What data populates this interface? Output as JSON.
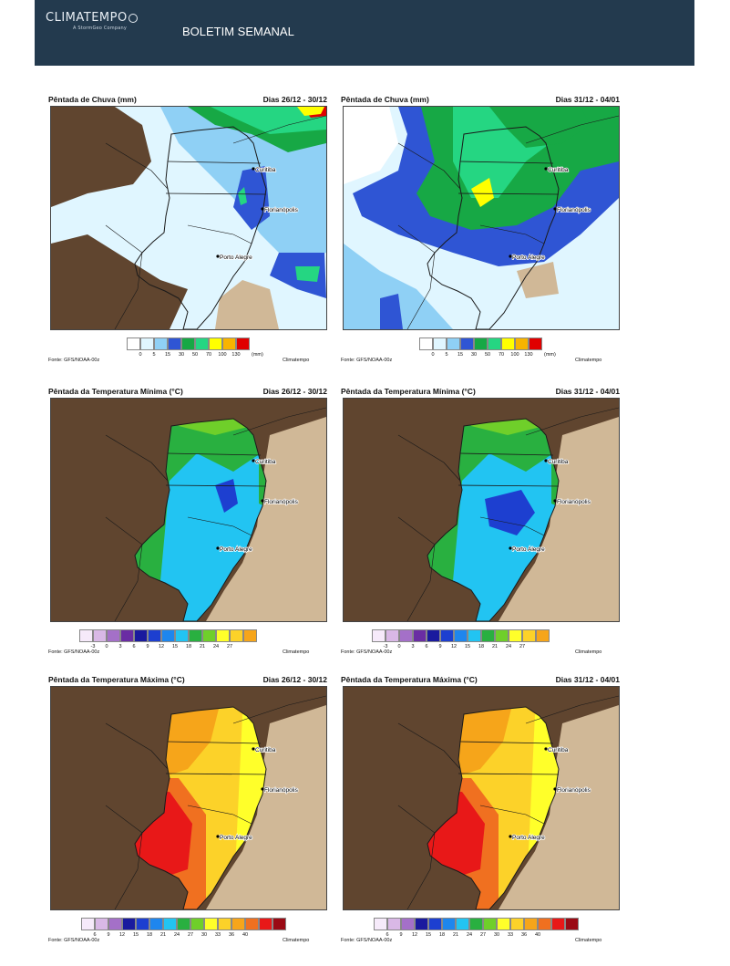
{
  "header": {
    "logo_text": "CLIMATEMPO",
    "logo_sub": "A StormGeo Company",
    "title": "BOLETIM SEMANAL",
    "bg_color": "#233a4e"
  },
  "rows": [
    {
      "kind": "rain",
      "panels": [
        {
          "title": "Pêntada de Chuva (mm)",
          "period": "Dias 26/12 - 30/12"
        },
        {
          "title": "Pêntada de Chuva (mm)",
          "period": "Dias 31/12 - 04/01"
        }
      ],
      "legend_colors": [
        "#ffffff",
        "#e0f6ff",
        "#8fd0f5",
        "#2f55d4",
        "#17a845",
        "#25d682",
        "#ffff00",
        "#f8b400",
        "#e00000"
      ],
      "legend_ticks": [
        "0",
        "5",
        "15",
        "30",
        "50",
        "70",
        "100",
        "130"
      ],
      "legend_unit": "(mm)"
    },
    {
      "kind": "tmin",
      "panels": [
        {
          "title": "Pêntada da Temperatura Mínima (°C)",
          "period": "Dias 26/12 - 30/12"
        },
        {
          "title": "Pêntada da Temperatura Mínima (°C)",
          "period": "Dias 31/12 - 04/01"
        }
      ],
      "legend_colors": [
        "#f6eafa",
        "#d9b8e6",
        "#a470c8",
        "#6a2da3",
        "#1a1a9e",
        "#1d3fd0",
        "#1e86ee",
        "#22c4f2",
        "#29b040",
        "#6fcf2a",
        "#ffff2a",
        "#fcd229",
        "#f6a51a"
      ],
      "legend_ticks": [
        "-3",
        "0",
        "3",
        "6",
        "9",
        "12",
        "15",
        "18",
        "21",
        "24",
        "27"
      ]
    },
    {
      "kind": "tmax",
      "panels": [
        {
          "title": "Pêntada da Temperatura Máxima (°C)",
          "period": "Dias 26/12 - 30/12"
        },
        {
          "title": "Pêntada da Temperatura Máxima (°C)",
          "period": "Dias 31/12 - 04/01"
        }
      ],
      "legend_colors": [
        "#f6eafa",
        "#d9b8e6",
        "#a470c8",
        "#1a1a9e",
        "#1d3fd0",
        "#1e86ee",
        "#22c4f2",
        "#29b040",
        "#6fcf2a",
        "#ffff2a",
        "#fcd229",
        "#f6a51a",
        "#f07020",
        "#e81818",
        "#9a0a14"
      ],
      "legend_ticks": [
        "6",
        "9",
        "12",
        "15",
        "18",
        "21",
        "24",
        "27",
        "30",
        "33",
        "36",
        "40"
      ]
    }
  ],
  "source": "Fonte: GFS/NOAA-00z",
  "brand": "Climatempo",
  "cities": {
    "c1": "Curitiba",
    "c2": "Florianópolis",
    "c3": "Porto Alegre"
  }
}
